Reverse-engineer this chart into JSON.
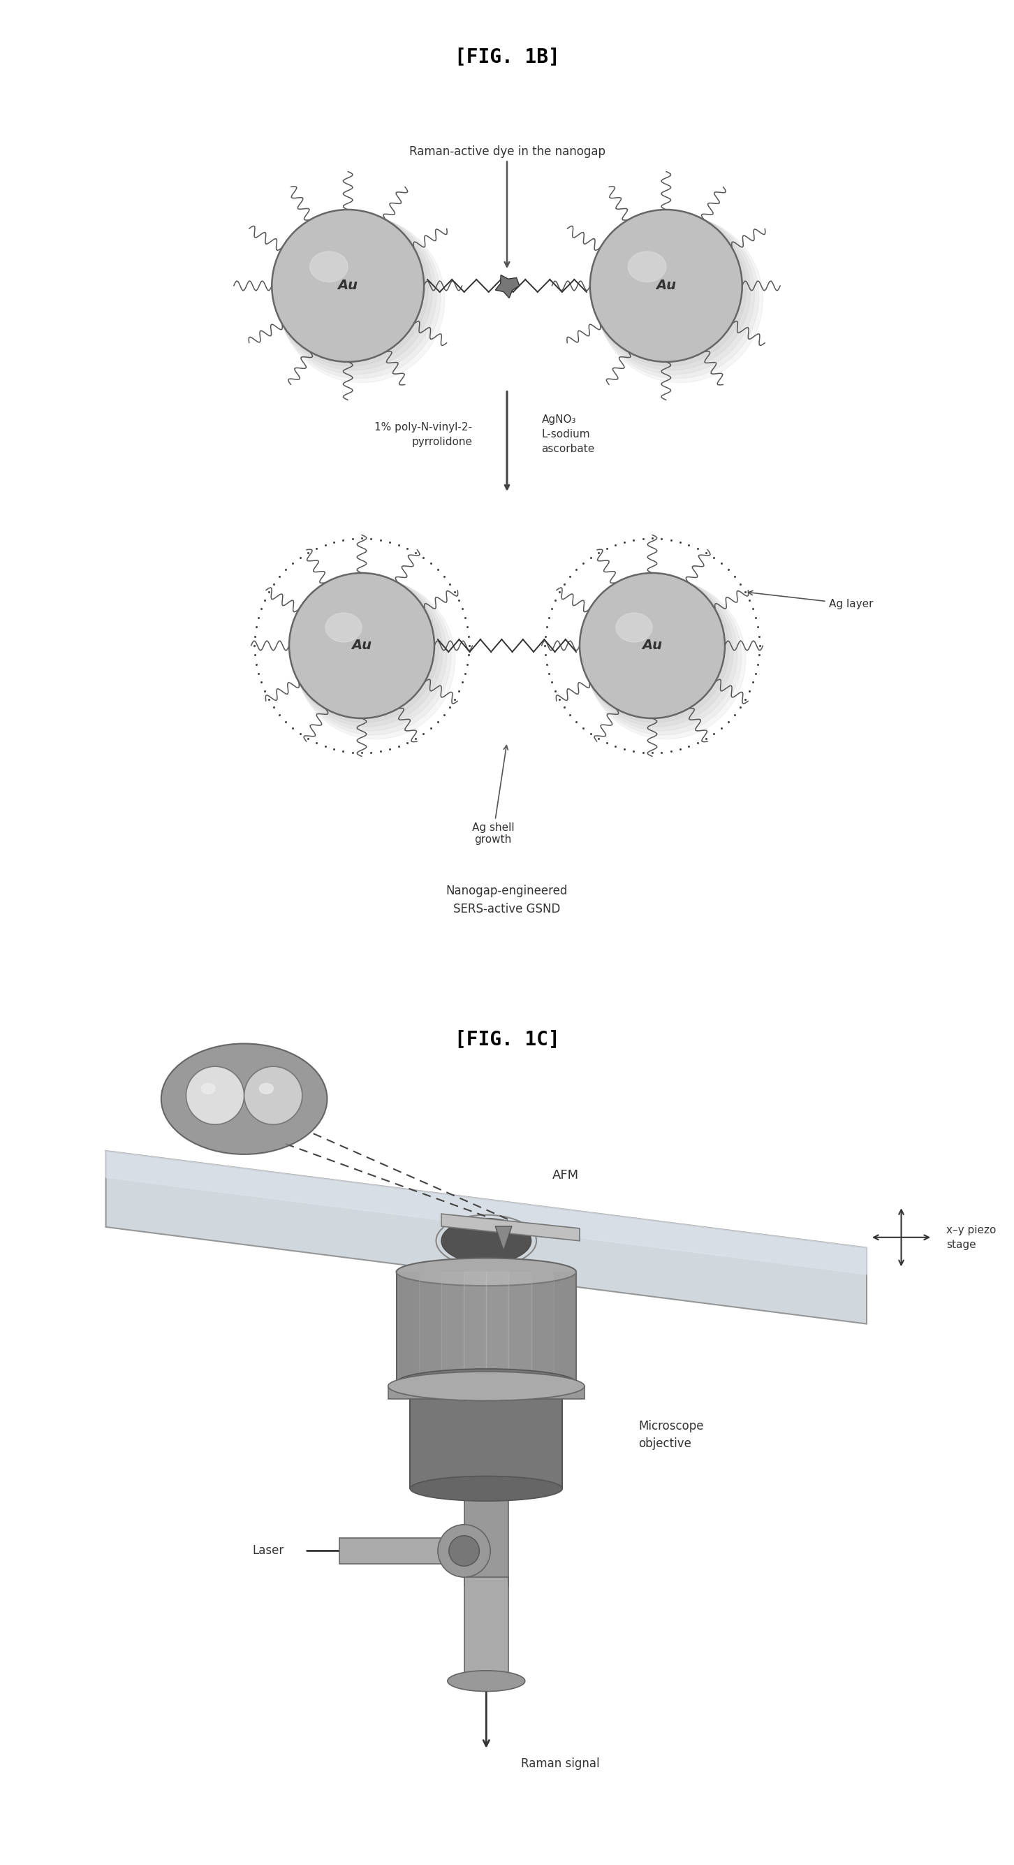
{
  "fig1b_title": "[FIG. 1B]",
  "fig1c_title": "[FIG. 1C]",
  "label_raman_dye": "Raman-active dye in the nanogap",
  "label_pvp": "1% poly-N-vinyl-2-\npyrrolidone",
  "label_agno3": "AgNO₃\nL-sodium\nascorbate",
  "label_au": "Au",
  "label_ag_layer": "Ag layer",
  "label_ag_shell": "Ag shell\ngrowth",
  "label_nanogap": "Nanogap-engineered\nSERS-active GSND",
  "label_afm": "AFM",
  "label_piezo": "x–y piezo\nstage",
  "label_objective": "Microscope\nobjective",
  "label_laser": "Laser",
  "label_raman": "Raman signal",
  "bg_color": "#ffffff",
  "particle_color": "#c0c0c0",
  "particle_edge": "#666666",
  "shell_dot_color": "#444444",
  "arrow_color": "#555555",
  "text_color": "#333333",
  "title_color": "#000000",
  "fig_width": 14.52,
  "fig_height": 26.69
}
